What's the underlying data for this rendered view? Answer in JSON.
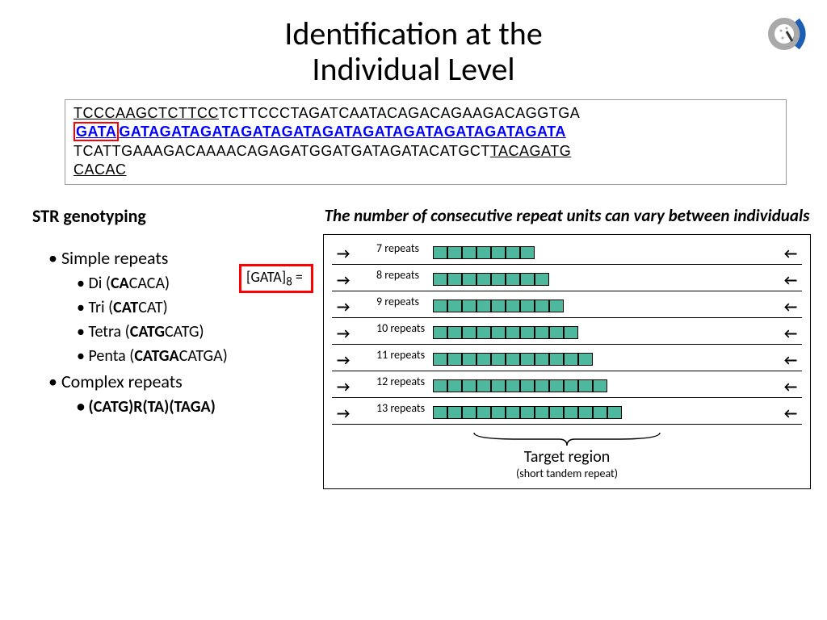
{
  "title_line1": "Identification at the",
  "title_line2": "Individual Level",
  "sequence": {
    "pre_underline": "TCCCAAGCTCTTCC",
    "pre_plain": "TCTTCCCTAGATCAATACAGACAGAAGACAGGTGA",
    "gata_boxed": "GATA",
    "gata_rest": "GATAGATAGATAGATAGATAGATAGATAGATAGATAGATAGATA",
    "post_plain": "TCATTGAAAGACAAAACAGAGATGGATGATAGATACATGCT",
    "post_underline1": "TACAGATG",
    "post_underline2": "CACAC"
  },
  "str": {
    "heading": "STR genotyping",
    "simple": "Simple repeats",
    "di_pre": "Di (",
    "di_bold": "CA",
    "di_rest": "CACA)",
    "tri_pre": "Tri (",
    "tri_bold": "CAT",
    "tri_rest": "CAT)",
    "tetra_pre": "Tetra (",
    "tetra_bold": "CATG",
    "tetra_rest": "CATG)",
    "penta_pre": "Penta (",
    "penta_bold": "CATGA",
    "penta_rest": "CATGA)",
    "complex": "Complex repeats",
    "complex_ex": "(CATG)R(TA)(TAGA)"
  },
  "note": "The number of consecutive repeat units can vary between individuals",
  "gata_label_pre": "[GATA]",
  "gata_label_sub": "8",
  "gata_label_post": " =",
  "repeats": [
    {
      "n": 7,
      "label": "7 repeats"
    },
    {
      "n": 8,
      "label": "8 repeats"
    },
    {
      "n": 9,
      "label": "9 repeats"
    },
    {
      "n": 10,
      "label": "10 repeats"
    },
    {
      "n": 11,
      "label": "11 repeats"
    },
    {
      "n": 12,
      "label": "12 repeats"
    },
    {
      "n": 13,
      "label": "13 repeats"
    }
  ],
  "target": "Target region",
  "target_sub": "(short tandem repeat)",
  "colors": {
    "box_fill": "#4db89e",
    "red": "#ff0000",
    "blue": "#0000ff",
    "logo_gray": "#a9a9a9",
    "logo_blue": "#1a5fb4"
  }
}
